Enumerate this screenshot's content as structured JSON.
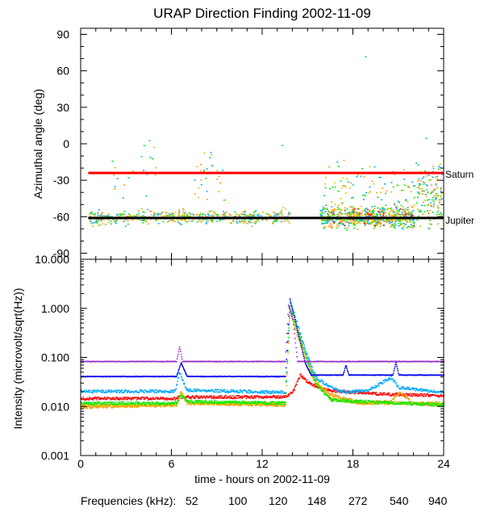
{
  "chart_data": [
    {
      "type": "scatter",
      "panel": "top",
      "title": "URAP Direction Finding  2002-11-09",
      "ylabel": "Azimuthal angle (deg)",
      "xlim": [
        0,
        24
      ],
      "ylim": [
        -95,
        95
      ],
      "yticks": [
        90,
        60,
        30,
        0,
        -30,
        -60,
        -90
      ],
      "ytick_labels": [
        "90",
        "60",
        "30",
        "0",
        "-30",
        "-60",
        "-90"
      ],
      "reference_lines": [
        {
          "name": "Saturn",
          "y": -24,
          "x_start": 0.5,
          "x_end": 24,
          "color": "#ff0000"
        },
        {
          "name": "Jupiter",
          "y": -61,
          "x_start": 0.5,
          "x_end": 24,
          "color": "#000000"
        }
      ],
      "clusters": [
        {
          "x_start": 0.5,
          "x_end": 13.8,
          "y_center": -60,
          "spread": 4,
          "count": 500
        },
        {
          "x_start": 2.0,
          "x_end": 5.0,
          "y_center": -22,
          "spread": 15,
          "count": 20
        },
        {
          "x_start": 7.5,
          "x_end": 9.5,
          "y_center": -28,
          "spread": 15,
          "count": 30
        },
        {
          "x_start": 15.8,
          "x_end": 22.0,
          "y_center": -60,
          "spread": 6,
          "count": 700
        },
        {
          "x_start": 15.8,
          "x_end": 22.0,
          "y_center": -35,
          "spread": 12,
          "count": 90
        },
        {
          "x_start": 22.0,
          "x_end": 23.9,
          "y_center": -42,
          "spread": 18,
          "count": 140
        }
      ],
      "outliers": [
        {
          "x": 18.8,
          "y": 72
        },
        {
          "x": 4.5,
          "y": 3
        },
        {
          "x": 22.8,
          "y": 5
        },
        {
          "x": 8.5,
          "y": -11
        },
        {
          "x": 13.3,
          "y": -1
        }
      ]
    },
    {
      "type": "line",
      "panel": "bottom",
      "ylabel": "Intensity (microvolt/sqrt(Hz))",
      "xlabel": "time - hours on 2002-11-09",
      "xlim": [
        0,
        24
      ],
      "ylim_log": [
        0.001,
        10
      ],
      "yscale": "log",
      "xticks": [
        0,
        6,
        12,
        18,
        24
      ],
      "xtick_labels": [
        "0",
        "6",
        "12",
        "18",
        "24"
      ],
      "yticks": [
        10,
        1,
        0.1,
        0.01,
        0.001
      ],
      "ytick_labels": [
        "10.000",
        "1.000",
        "0.100",
        "0.010",
        "0.001"
      ],
      "series": [
        {
          "name": "52",
          "points": [
            [
              0,
              0.015
            ],
            [
              6.2,
              0.015
            ],
            [
              6.5,
              0.016
            ],
            [
              13.5,
              0.016
            ],
            [
              14.0,
              0.02
            ],
            [
              14.5,
              0.045
            ],
            [
              15.0,
              0.032
            ],
            [
              16.0,
              0.023
            ],
            [
              17.0,
              0.021
            ],
            [
              19.0,
              0.019
            ],
            [
              21.0,
              0.018
            ],
            [
              24,
              0.017
            ]
          ]
        },
        {
          "name": "100",
          "points": [
            [
              0,
              0.01
            ],
            [
              6.3,
              0.011
            ],
            [
              6.6,
              0.02
            ],
            [
              7.0,
              0.012
            ],
            [
              13.5,
              0.011
            ],
            [
              13.8,
              0.9
            ],
            [
              14.2,
              0.35
            ],
            [
              14.8,
              0.1
            ],
            [
              15.5,
              0.03
            ],
            [
              16.5,
              0.018
            ],
            [
              18.5,
              0.012
            ],
            [
              20.5,
              0.013
            ],
            [
              21.0,
              0.02
            ],
            [
              22.0,
              0.012
            ],
            [
              24,
              0.011
            ]
          ]
        },
        {
          "name": "120",
          "points": [
            [
              0,
              0.011
            ],
            [
              6.3,
              0.011
            ],
            [
              6.6,
              0.02
            ],
            [
              7.0,
              0.012
            ],
            [
              13.5,
              0.012
            ],
            [
              13.8,
              1.0
            ],
            [
              14.2,
              0.4
            ],
            [
              14.8,
              0.12
            ],
            [
              15.5,
              0.035
            ],
            [
              16.5,
              0.015
            ],
            [
              18.5,
              0.012
            ],
            [
              24,
              0.012
            ]
          ]
        },
        {
          "name": "148",
          "points": [
            [
              0,
              0.012
            ],
            [
              6.3,
              0.012
            ],
            [
              6.6,
              0.018
            ],
            [
              7.0,
              0.013
            ],
            [
              13.5,
              0.012
            ],
            [
              13.8,
              1.1
            ],
            [
              14.2,
              0.45
            ],
            [
              14.8,
              0.13
            ],
            [
              15.5,
              0.03
            ],
            [
              16.5,
              0.014
            ],
            [
              18.5,
              0.013
            ],
            [
              24,
              0.011
            ]
          ]
        },
        {
          "name": "272",
          "points": [
            [
              0,
              0.021
            ],
            [
              6.2,
              0.021
            ],
            [
              6.5,
              0.05
            ],
            [
              7.0,
              0.022
            ],
            [
              13.5,
              0.02
            ],
            [
              13.8,
              1.4
            ],
            [
              14.2,
              0.6
            ],
            [
              14.8,
              0.15
            ],
            [
              15.5,
              0.04
            ],
            [
              16.5,
              0.025
            ],
            [
              17.5,
              0.02
            ],
            [
              19.0,
              0.022
            ],
            [
              20.5,
              0.04
            ],
            [
              21.0,
              0.025
            ],
            [
              24,
              0.02
            ]
          ]
        },
        {
          "name": "540",
          "points": [
            [
              0,
              0.042
            ],
            [
              6.3,
              0.042
            ],
            [
              6.6,
              0.08
            ],
            [
              7.0,
              0.042
            ],
            [
              13.5,
              0.042
            ],
            [
              13.8,
              1.6
            ],
            [
              14.2,
              0.5
            ],
            [
              14.8,
              0.08
            ],
            [
              15.2,
              0.045
            ],
            [
              17.3,
              0.045
            ],
            [
              17.5,
              0.07
            ],
            [
              17.7,
              0.045
            ],
            [
              20.6,
              0.045
            ],
            [
              20.8,
              0.08
            ],
            [
              21.0,
              0.045
            ],
            [
              24,
              0.045
            ]
          ]
        },
        {
          "name": "940",
          "points": [
            [
              0,
              0.085
            ],
            [
              6.3,
              0.085
            ],
            [
              6.5,
              0.17
            ],
            [
              6.7,
              0.085
            ],
            [
              13.5,
              0.085
            ],
            [
              13.7,
              1.2
            ],
            [
              14.0,
              0.6
            ],
            [
              14.3,
              0.085
            ],
            [
              24,
              0.085
            ]
          ]
        }
      ]
    }
  ],
  "legend": {
    "label": "Frequencies (kHz):",
    "items": [
      {
        "text": "52",
        "color": "#ff0000"
      },
      {
        "text": "100",
        "color": "#ff9900"
      },
      {
        "text": "120",
        "color": "#e6b800"
      },
      {
        "text": "148",
        "color": "#00ee00"
      },
      {
        "text": "272",
        "color": "#00aaff"
      },
      {
        "text": "540",
        "color": "#0000ee"
      },
      {
        "text": "940",
        "color": "#9933cc"
      }
    ]
  }
}
